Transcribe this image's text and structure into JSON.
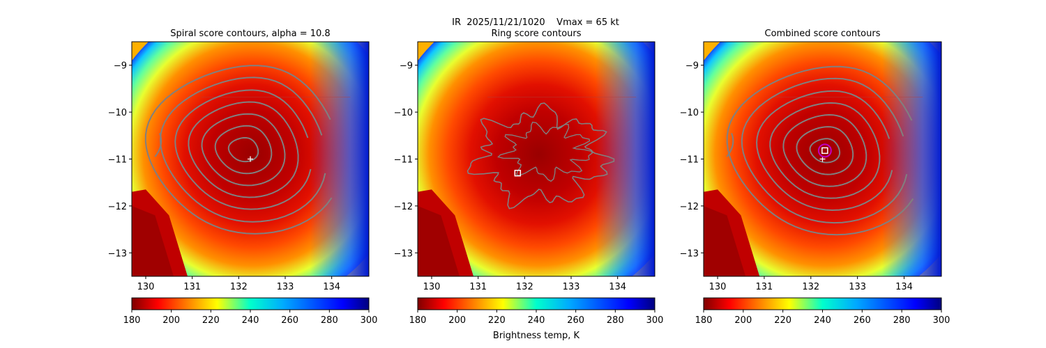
{
  "figure": {
    "suptitle": "IR  2025/11/21/1020    Vmax = 65 kt",
    "colorbar_label": "Brightness temp, K",
    "colormap": "jet_reversed",
    "clim": [
      180,
      300
    ],
    "colorbar_ticks": [
      "180",
      "200",
      "220",
      "240",
      "260",
      "280",
      "300"
    ],
    "contour_color": "#808080",
    "marker_colors": {
      "best_track": "#ffffff",
      "center_box": "#ffffff",
      "ring": "#c000c0"
    }
  },
  "chart_data": [
    {
      "type": "heatmap",
      "title": "Spiral score contours, alpha = 10.8",
      "xlim": [
        129.7,
        134.8
      ],
      "ylim": [
        -13.5,
        -8.5
      ],
      "xticks": [
        "130",
        "131",
        "132",
        "133",
        "134"
      ],
      "yticks": [
        "−9",
        "−10",
        "−11",
        "−12",
        "−13"
      ],
      "best_track_center": [
        132.25,
        -11.0
      ],
      "contours": "spiral",
      "contour_center": [
        132.1,
        -10.8
      ]
    },
    {
      "type": "heatmap",
      "title": "Ring score contours",
      "xlim": [
        129.7,
        134.8
      ],
      "ylim": [
        -13.5,
        -8.5
      ],
      "xticks": [
        "130",
        "131",
        "132",
        "133",
        "134"
      ],
      "yticks": [
        "−9",
        "−10",
        "−11",
        "−12",
        "−13"
      ],
      "center_estimate": [
        131.85,
        -11.3
      ],
      "contours": "ring"
    },
    {
      "type": "heatmap",
      "title": "Combined score contours",
      "xlim": [
        129.7,
        134.8
      ],
      "ylim": [
        -13.5,
        -8.5
      ],
      "xticks": [
        "130",
        "131",
        "132",
        "133",
        "134"
      ],
      "yticks": [
        "−9",
        "−10",
        "−11",
        "−12",
        "−13"
      ],
      "best_track_center": [
        132.25,
        -11.0
      ],
      "center_estimate": [
        132.3,
        -10.82
      ],
      "contours": "spiral",
      "contour_center": [
        132.3,
        -10.82
      ]
    }
  ]
}
